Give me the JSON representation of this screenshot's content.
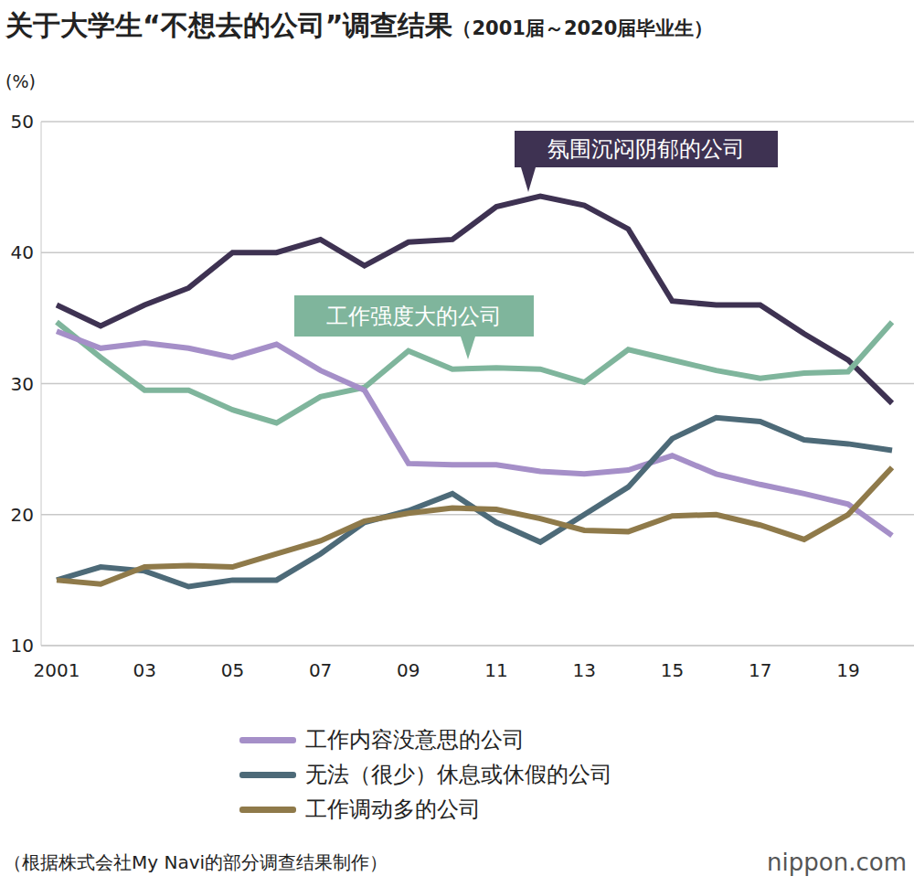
{
  "chart_data": {
    "type": "line",
    "title": "关于大学生“不想去的公司”调查结果",
    "subtitle": "（2001届～2020届毕业生）",
    "y_label": "(%)",
    "source": "（根据株式会社My Navi的部分调查结果制作）",
    "credit": "nippon.com",
    "categories": [
      "2001",
      null,
      "03",
      null,
      "05",
      null,
      "07",
      null,
      "09",
      null,
      "11",
      null,
      "13",
      null,
      "15",
      null,
      "17",
      null,
      "19",
      null
    ],
    "ylim": [
      10,
      50
    ],
    "yticks": [
      10,
      20,
      30,
      40,
      50
    ],
    "grid": true,
    "legend": "bottom",
    "series": [
      {
        "name": "氛围沉闷阴郁的公司",
        "color": "#3e3252",
        "values": [
          36,
          34.4,
          36,
          37.3,
          40,
          40,
          41,
          39,
          40.8,
          41,
          43.5,
          44.3,
          43.6,
          41.8,
          36.3,
          36,
          36,
          33.8,
          31.8,
          28.5
        ]
      },
      {
        "name": "工作强度大的公司",
        "color": "#7fb59c",
        "values": [
          34.7,
          32,
          29.5,
          29.5,
          28,
          27,
          29,
          29.7,
          32.5,
          31.1,
          31.2,
          31.1,
          30.1,
          32.6,
          31.8,
          31,
          30.4,
          30.8,
          30.9,
          34.7
        ]
      },
      {
        "name": "工作内容没意思的公司",
        "color": "#a58fc8",
        "values": [
          34,
          32.7,
          33.1,
          32.7,
          32,
          33,
          31,
          29.5,
          23.9,
          23.8,
          23.8,
          23.3,
          23.1,
          23.4,
          24.5,
          23.1,
          22.3,
          21.6,
          20.8,
          18.4
        ]
      },
      {
        "name": "无法（很少）休息或休假的公司",
        "color": "#4d6a78",
        "values": [
          15,
          16,
          15.7,
          14.5,
          15,
          15,
          17,
          19.4,
          20.3,
          21.6,
          19.4,
          17.9,
          20,
          22.1,
          25.8,
          27.4,
          27.1,
          25.7,
          25.4,
          24.9
        ]
      },
      {
        "name": "工作调动多的公司",
        "color": "#8f7a4a",
        "values": [
          15,
          14.7,
          16,
          16.1,
          16,
          17,
          18,
          19.5,
          20.1,
          20.5,
          20.4,
          19.7,
          18.8,
          18.7,
          19.9,
          20,
          19.2,
          18.1,
          20,
          23.6
        ]
      }
    ]
  }
}
